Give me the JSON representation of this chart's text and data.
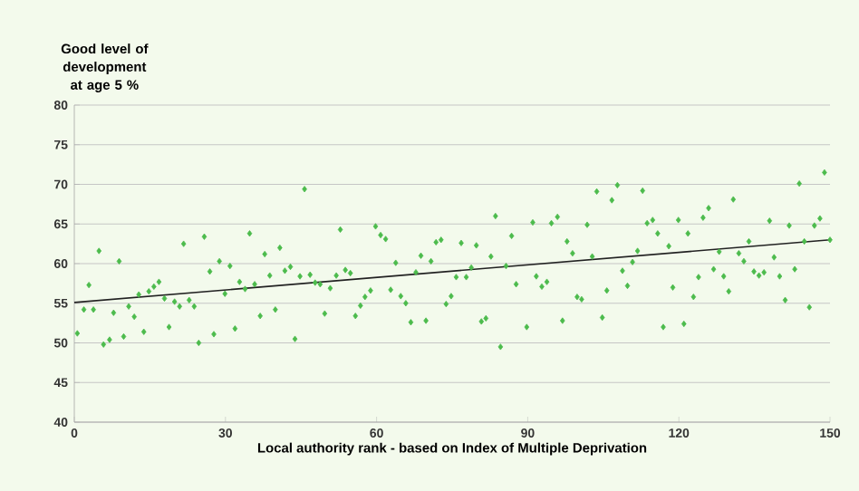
{
  "chart_data": {
    "type": "scatter",
    "xlabel": "Local authority rank - based on Index of Multiple Deprivation",
    "ylabel": "Good level of development at age 5 %",
    "xlim": [
      0,
      150
    ],
    "ylim": [
      40,
      80
    ],
    "xticks": [
      0,
      30,
      60,
      90,
      120,
      150
    ],
    "yticks": [
      40,
      45,
      50,
      55,
      60,
      65,
      70,
      75,
      80
    ],
    "grid": "y",
    "series": [
      {
        "color": "#4cbb4c",
        "marker": "diamond",
        "x": [
          0.6,
          1.9,
          2.9,
          3.8,
          4.9,
          5.8,
          7.0,
          7.8,
          8.9,
          9.8,
          10.8,
          11.9,
          12.8,
          13.8,
          14.8,
          15.8,
          16.8,
          17.9,
          18.8,
          19.9,
          20.9,
          21.7,
          22.8,
          23.8,
          24.7,
          25.8,
          26.9,
          27.7,
          28.8,
          29.9,
          30.9,
          31.9,
          32.8,
          33.9,
          34.8,
          35.8,
          36.9,
          37.8,
          38.8,
          39.9,
          40.8,
          41.8,
          42.9,
          43.8,
          44.8,
          45.7,
          46.8,
          47.8,
          48.8,
          49.7,
          50.8,
          52.0,
          52.8,
          53.8,
          54.8,
          55.8,
          56.8,
          57.7,
          58.8,
          59.8,
          60.8,
          61.8,
          62.8,
          63.8,
          64.8,
          65.8,
          66.8,
          67.8,
          68.8,
          69.8,
          70.8,
          71.8,
          72.8,
          73.8,
          74.8,
          75.8,
          76.8,
          77.8,
          78.8,
          79.8,
          80.8,
          81.7,
          82.7,
          83.6,
          84.6,
          85.7,
          86.8,
          87.7,
          89.8,
          91.0,
          91.7,
          92.8,
          93.8,
          94.7,
          95.9,
          96.9,
          97.8,
          98.9,
          99.8,
          100.7,
          101.8,
          102.8,
          103.7,
          104.8,
          105.7,
          106.7,
          107.8,
          108.8,
          109.8,
          110.8,
          111.8,
          112.8,
          113.7,
          114.8,
          115.8,
          116.9,
          118.0,
          118.8,
          119.9,
          121.0,
          121.8,
          122.9,
          123.9,
          124.8,
          125.9,
          126.9,
          128.0,
          128.9,
          129.9,
          130.8,
          131.9,
          132.9,
          133.9,
          134.9,
          135.9,
          136.9,
          138.0,
          138.9,
          140.0,
          141.1,
          141.9,
          143.0,
          143.9,
          144.9,
          145.9,
          146.9,
          148.0,
          148.9,
          150.0
        ],
        "values": [
          51.2,
          54.2,
          57.3,
          54.2,
          61.6,
          49.8,
          50.4,
          53.8,
          60.3,
          50.8,
          54.6,
          53.3,
          56.1,
          51.4,
          56.5,
          57.1,
          57.7,
          55.6,
          52.0,
          55.2,
          54.6,
          62.5,
          55.4,
          54.6,
          50.0,
          63.4,
          59.0,
          51.1,
          60.3,
          56.2,
          59.7,
          51.8,
          57.7,
          56.8,
          63.8,
          57.4,
          53.4,
          61.2,
          58.5,
          54.2,
          62.0,
          59.1,
          59.6,
          50.5,
          58.4,
          69.4,
          58.6,
          57.6,
          57.4,
          53.7,
          56.9,
          58.5,
          64.3,
          59.2,
          58.8,
          53.4,
          54.7,
          55.8,
          56.6,
          64.7,
          63.6,
          63.1,
          56.7,
          60.1,
          55.9,
          55.0,
          52.6,
          58.9,
          61.0,
          52.8,
          60.3,
          62.7,
          63.0,
          54.9,
          55.9,
          58.3,
          62.6,
          58.3,
          59.5,
          62.3,
          52.7,
          53.1,
          60.9,
          66.0,
          49.5,
          59.7,
          63.5,
          57.4,
          52.0,
          65.2,
          58.4,
          57.1,
          57.7,
          65.1,
          65.9,
          52.8,
          62.8,
          61.3,
          55.8,
          55.5,
          64.9,
          60.9,
          69.1,
          53.2,
          56.6,
          68.0,
          69.9,
          59.1,
          57.2,
          60.2,
          61.6,
          69.2,
          65.1,
          65.5,
          63.8,
          52.0,
          62.2,
          57.0,
          65.5,
          52.4,
          63.8,
          55.8,
          58.3,
          65.8,
          67.0,
          59.3,
          61.5,
          58.4,
          56.5,
          68.1,
          61.3,
          60.3,
          62.8,
          59.0,
          58.5,
          58.9,
          65.4,
          60.8,
          58.4,
          55.4,
          64.8,
          59.3,
          70.1,
          62.8,
          54.5,
          64.8,
          65.7,
          71.5,
          63.0
        ]
      },
      {
        "type": "line",
        "color": "#222222",
        "x": [
          0,
          150
        ],
        "values": [
          55.1,
          63.0
        ]
      }
    ]
  }
}
